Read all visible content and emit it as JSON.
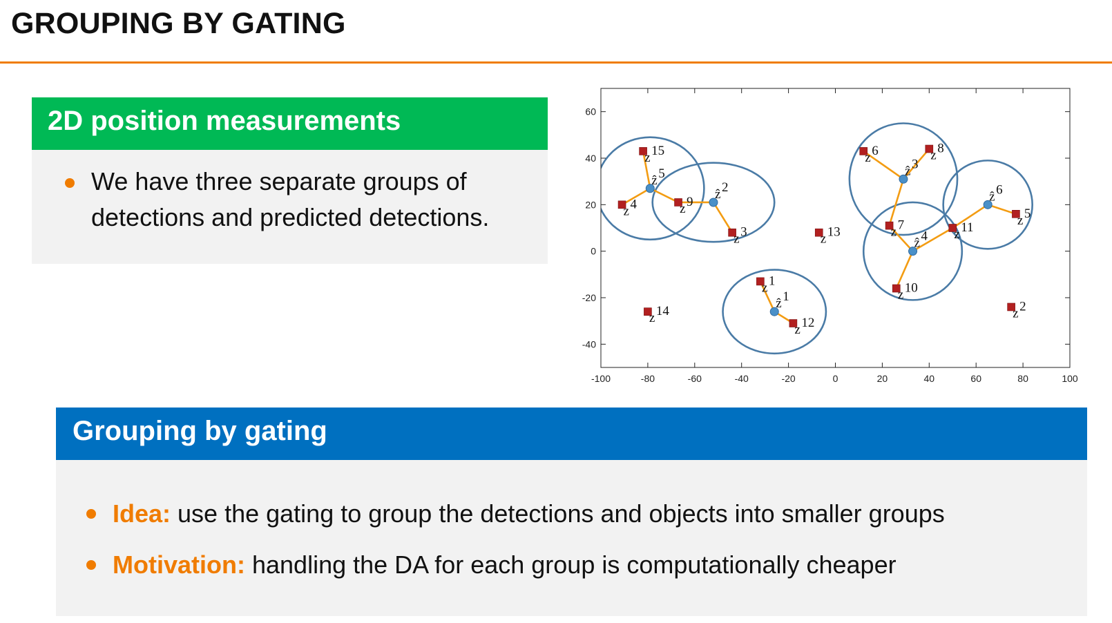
{
  "slide": {
    "title": "GROUPING BY GATING"
  },
  "box1": {
    "header": "2D position measurements",
    "bullet": "We have three separate groups of detections and predicted detections."
  },
  "box2": {
    "header": "Grouping by gating",
    "bullets": [
      {
        "keyword": "Idea:",
        "text": " use the gating to group the detections and objects into smaller groups"
      },
      {
        "keyword": "Motivation:",
        "text": " handling the DA for each group is computationally cheaper"
      }
    ]
  },
  "colors": {
    "accent": "#f07c00",
    "green_header": "#00b955",
    "blue_header": "#0070c0",
    "gate_ellipse": "#4a7ba6",
    "detection": "#b22020",
    "prediction": "#4a90c8",
    "association_line": "#f39c12"
  },
  "chart_data": {
    "type": "scatter",
    "xlim": [
      -100,
      100
    ],
    "ylim": [
      -50,
      70
    ],
    "xticks": [
      -100,
      -80,
      -60,
      -40,
      -20,
      0,
      20,
      40,
      60,
      80,
      100
    ],
    "yticks": [
      -40,
      -20,
      0,
      20,
      40,
      60
    ],
    "xlabel": "",
    "ylabel": "",
    "grid": false,
    "detections": [
      {
        "label": "1",
        "x": -32,
        "y": -13
      },
      {
        "label": "2",
        "x": 75,
        "y": -24
      },
      {
        "label": "3",
        "x": -44,
        "y": 8
      },
      {
        "label": "4",
        "x": -91,
        "y": 20
      },
      {
        "label": "5",
        "x": 77,
        "y": 16
      },
      {
        "label": "6",
        "x": 12,
        "y": 43
      },
      {
        "label": "7",
        "x": 23,
        "y": 11
      },
      {
        "label": "8",
        "x": 40,
        "y": 44
      },
      {
        "label": "9",
        "x": -67,
        "y": 21
      },
      {
        "label": "10",
        "x": 26,
        "y": -16
      },
      {
        "label": "11",
        "x": 50,
        "y": 10
      },
      {
        "label": "12",
        "x": -18,
        "y": -31
      },
      {
        "label": "13",
        "x": -7,
        "y": 8
      },
      {
        "label": "14",
        "x": -80,
        "y": -26
      },
      {
        "label": "15",
        "x": -82,
        "y": 43
      }
    ],
    "predictions": [
      {
        "label": "1",
        "x": -26,
        "y": -26
      },
      {
        "label": "2",
        "x": -52,
        "y": 21
      },
      {
        "label": "3",
        "x": 29,
        "y": 31
      },
      {
        "label": "4",
        "x": 33,
        "y": 0
      },
      {
        "label": "5",
        "x": -79,
        "y": 27
      },
      {
        "label": "6",
        "x": 65,
        "y": 20
      }
    ],
    "gates": [
      {
        "prediction": "1",
        "rx": 22,
        "ry": 18
      },
      {
        "prediction": "2",
        "rx": 26,
        "ry": 17
      },
      {
        "prediction": "3",
        "rx": 23,
        "ry": 24
      },
      {
        "prediction": "4",
        "rx": 21,
        "ry": 21
      },
      {
        "prediction": "5",
        "rx": 23,
        "ry": 22
      },
      {
        "prediction": "6",
        "rx": 19,
        "ry": 19
      }
    ],
    "associations": [
      {
        "prediction": "1",
        "detections": [
          "1",
          "12"
        ]
      },
      {
        "prediction": "2",
        "detections": [
          "9",
          "3"
        ]
      },
      {
        "prediction": "3",
        "detections": [
          "6",
          "8",
          "7"
        ]
      },
      {
        "prediction": "4",
        "detections": [
          "7",
          "10",
          "11"
        ]
      },
      {
        "prediction": "5",
        "detections": [
          "15",
          "4",
          "9"
        ]
      },
      {
        "prediction": "6",
        "detections": [
          "11",
          "5"
        ]
      }
    ]
  }
}
